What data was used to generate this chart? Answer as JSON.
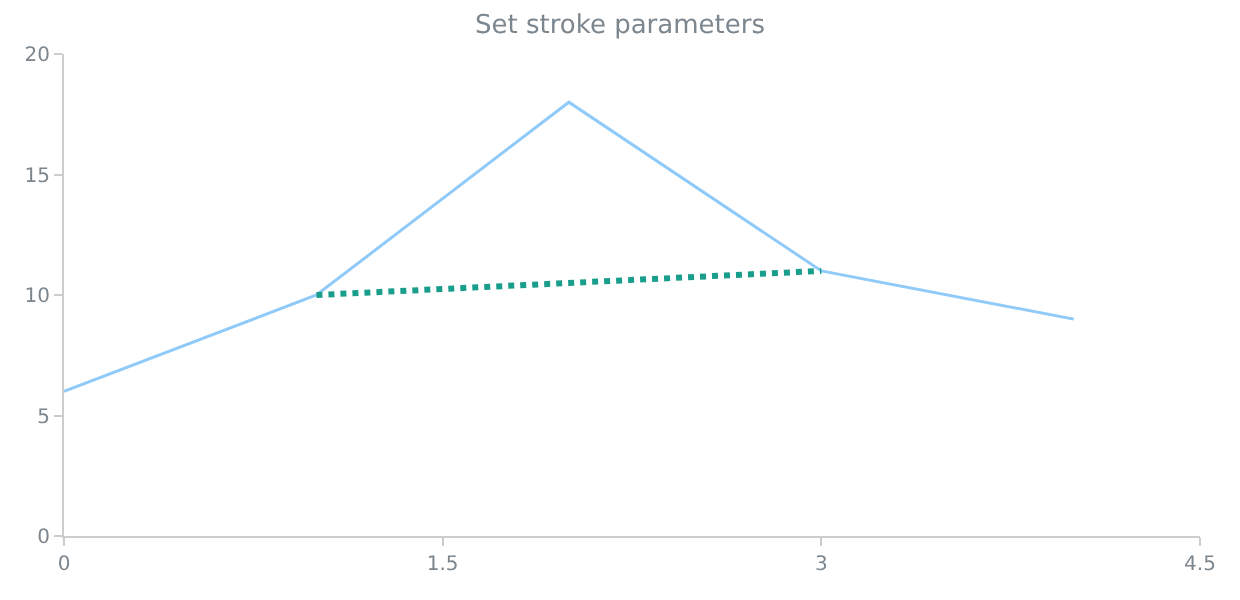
{
  "chart_data": {
    "type": "line",
    "title": "Set stroke parameters",
    "xlim": [
      0,
      4.5
    ],
    "xticks": [
      0,
      1.5,
      3,
      4.5
    ],
    "ylim": [
      0,
      20
    ],
    "yticks": [
      0,
      5,
      10,
      15,
      20
    ],
    "marker": "none",
    "series": [
      {
        "color": "#90caf9",
        "x": [
          0,
          1,
          2,
          3,
          4
        ],
        "values": [
          6,
          10,
          18,
          11,
          9
        ],
        "line_style": "solid"
      },
      {
        "color": "#1a9e8c",
        "x": [
          1,
          3
        ],
        "values": [
          10,
          11
        ],
        "line_style": "dotted"
      }
    ]
  }
}
